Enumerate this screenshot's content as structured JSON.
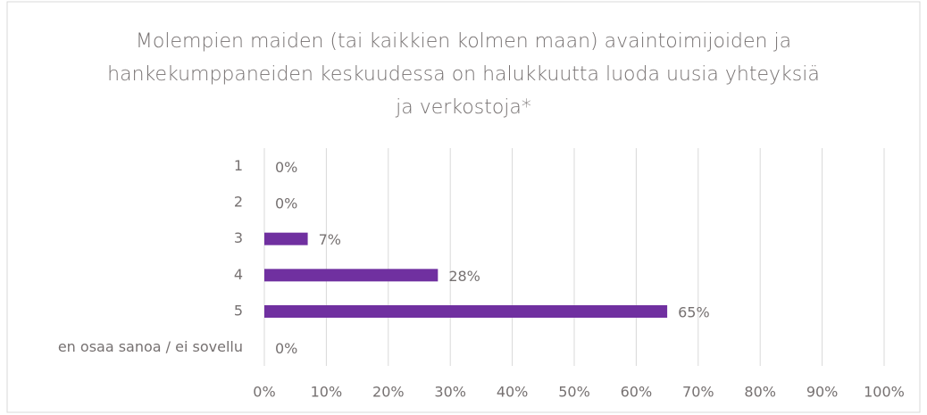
{
  "chart_data": {
    "type": "bar",
    "orientation": "horizontal",
    "title": "Molempien maiden (tai kaikkien kolmen maan) avaintoimijoiden ja hankekumppaneiden keskuudessa on halukkuutta luoda uusia yhteyksiä ja verkostoja*",
    "categories": [
      "1",
      "2",
      "3",
      "4",
      "5",
      "en osaa sanoa / ei sovellu"
    ],
    "values": [
      0,
      0,
      7,
      28,
      65,
      0
    ],
    "value_labels": [
      "0%",
      "0%",
      "7%",
      "28%",
      "65%",
      "0%"
    ],
    "color": "#7030a0",
    "xlim": [
      0,
      100
    ],
    "xticks": [
      {
        "value": 0,
        "label": "0%"
      },
      {
        "value": 10,
        "label": "10%"
      },
      {
        "value": 20,
        "label": "20%"
      },
      {
        "value": 30,
        "label": "30%"
      },
      {
        "value": 40,
        "label": "40%"
      },
      {
        "value": 50,
        "label": "50%"
      },
      {
        "value": 60,
        "label": "60%"
      },
      {
        "value": 70,
        "label": "70%"
      },
      {
        "value": 80,
        "label": "80%"
      },
      {
        "value": 90,
        "label": "90%"
      },
      {
        "value": 100,
        "label": "100%"
      }
    ],
    "grid": true
  }
}
